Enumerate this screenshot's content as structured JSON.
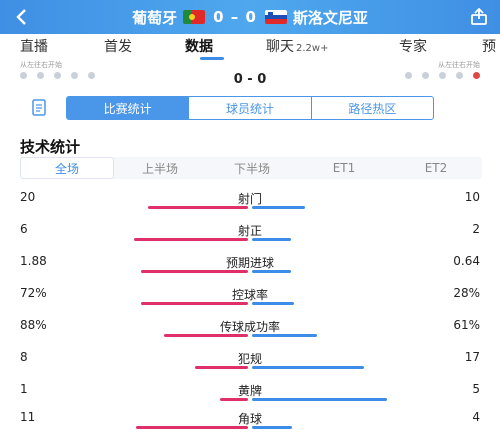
{
  "header": {
    "home_team": "葡萄牙",
    "away_team": "斯洛文尼亚",
    "score": "0 – 0"
  },
  "nav": {
    "tabs": [
      {
        "label": "直播"
      },
      {
        "label": "首发"
      },
      {
        "label": "数据",
        "active": true
      },
      {
        "label": "聊天",
        "sub": "2.2w+"
      },
      {
        "label": "专家"
      },
      {
        "label": "预"
      }
    ]
  },
  "timeline": {
    "left_label": "从左往右开始",
    "right_label": "从左往右开始",
    "score": "0 - 0"
  },
  "subtabs": [
    "比赛统计",
    "球员统计",
    "路径热区"
  ],
  "section_title": "技术统计",
  "periods": [
    "全场",
    "上半场",
    "下半场",
    "ET1",
    "ET2"
  ],
  "stats": [
    {
      "name": "射门",
      "left": "20",
      "right": "10",
      "lf": 0.57,
      "rf": 0.3
    },
    {
      "name": "射正",
      "left": "6",
      "right": "2",
      "lf": 0.65,
      "rf": 0.22
    },
    {
      "name": "预期进球",
      "left": "1.88",
      "right": "0.64",
      "lf": 0.61,
      "rf": 0.22
    },
    {
      "name": "控球率",
      "left": "72%",
      "right": "28%",
      "lf": 0.61,
      "rf": 0.24
    },
    {
      "name": "传球成功率",
      "left": "88%",
      "right": "61%",
      "lf": 0.48,
      "rf": 0.37
    },
    {
      "name": "犯规",
      "left": "8",
      "right": "17",
      "lf": 0.3,
      "rf": 0.64
    },
    {
      "name": "黄牌",
      "left": "1",
      "right": "5",
      "lf": 0.16,
      "rf": 0.77
    },
    {
      "name": "角球",
      "left": "11",
      "right": "4",
      "lf": 0.64,
      "rf": 0.23
    }
  ],
  "colors": {
    "accent": "#3d8de8",
    "home_bar": "#e0306a",
    "away_bar": "#3d8de8"
  }
}
